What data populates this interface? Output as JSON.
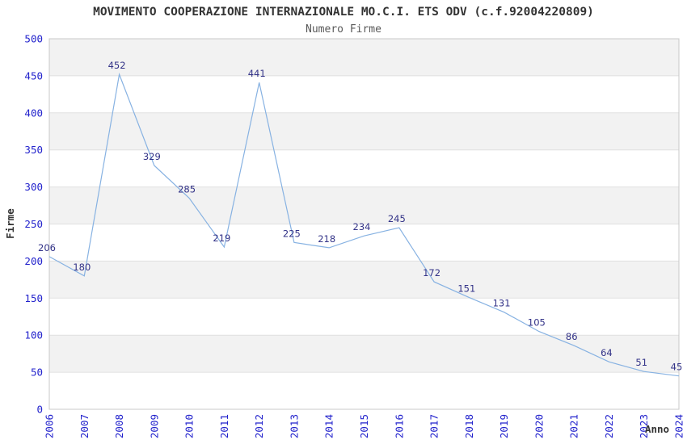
{
  "chart_data": {
    "type": "line",
    "title": "MOVIMENTO COOPERAZIONE INTERNAZIONALE MO.C.I. ETS ODV (c.f.92004220809)",
    "subtitle": "Numero Firme",
    "xlabel": "Anno",
    "ylabel": "Firme",
    "x": [
      2006,
      2007,
      2008,
      2009,
      2010,
      2011,
      2012,
      2013,
      2014,
      2015,
      2016,
      2017,
      2018,
      2019,
      2020,
      2021,
      2022,
      2023,
      2024
    ],
    "values": [
      206,
      180,
      452,
      329,
      285,
      219,
      441,
      225,
      218,
      234,
      245,
      172,
      151,
      131,
      105,
      86,
      64,
      51,
      45
    ],
    "ylim": [
      0,
      500
    ],
    "ytick_step": 50,
    "grid": true,
    "legend_position": "none",
    "data_labels_visible": true,
    "colors": {
      "line": "#87b2e2",
      "data_label": "#333388",
      "tick_label": "#2222cc",
      "band": "#f2f2f2",
      "gridline": "#e0e0e0",
      "plot_border": "#c8c8c8",
      "title": "#333333",
      "subtitle": "#595959",
      "axis_title": "#333333",
      "background": "#ffffff"
    }
  }
}
